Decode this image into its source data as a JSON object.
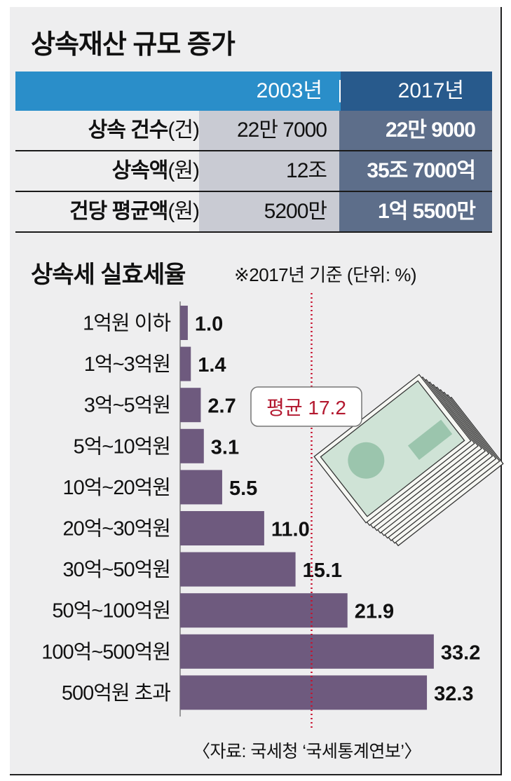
{
  "title": "상속재산 규모 증가",
  "table": {
    "years": [
      "2003년",
      "2017년"
    ],
    "rows": [
      {
        "label": "상속 건수",
        "unit": "(건)",
        "v2003": "22만 7000",
        "v2017": "22만 9000"
      },
      {
        "label": "상속액",
        "unit": "(원)",
        "v2003": "12조",
        "v2017": "35조 7000억"
      },
      {
        "label": "건당 평균액",
        "unit": "(원)",
        "v2003": "5200만",
        "v2017": "1억 5500만"
      }
    ]
  },
  "subtitle": "상속세 실효세율",
  "note": "※2017년 기준 (단위: %)",
  "source": "〈자료: 국세청 ‘국세통계연보’〉",
  "colors": {
    "header_blue": "#2a8ec9",
    "header_dark": "#285a8c",
    "cell_2003": "#c9cbd3",
    "cell_2017": "#5d6e8a",
    "bar": "#6e5a7e",
    "average_line": "#c8102e"
  },
  "chart_data": {
    "type": "bar",
    "orientation": "horizontal",
    "categories": [
      "1억원 이하",
      "1억~3억원",
      "3억~5억원",
      "5억~10억원",
      "10억~20억원",
      "20억~30억원",
      "30억~50억원",
      "50억~100억원",
      "100억~500억원",
      "500억원 초과"
    ],
    "values": [
      1.0,
      1.4,
      2.7,
      3.1,
      5.5,
      11.0,
      15.1,
      21.9,
      33.2,
      32.3
    ],
    "value_labels": [
      "1.0",
      "1.4",
      "2.7",
      "3.1",
      "5.5",
      "11.0",
      "15.1",
      "21.9",
      "33.2",
      "32.3"
    ],
    "average": {
      "label": "평균 17.2",
      "value": 17.2
    },
    "title": "상속세 실효세율",
    "xlabel": "",
    "ylabel": "",
    "unit": "%",
    "xlim": [
      0,
      40
    ]
  }
}
